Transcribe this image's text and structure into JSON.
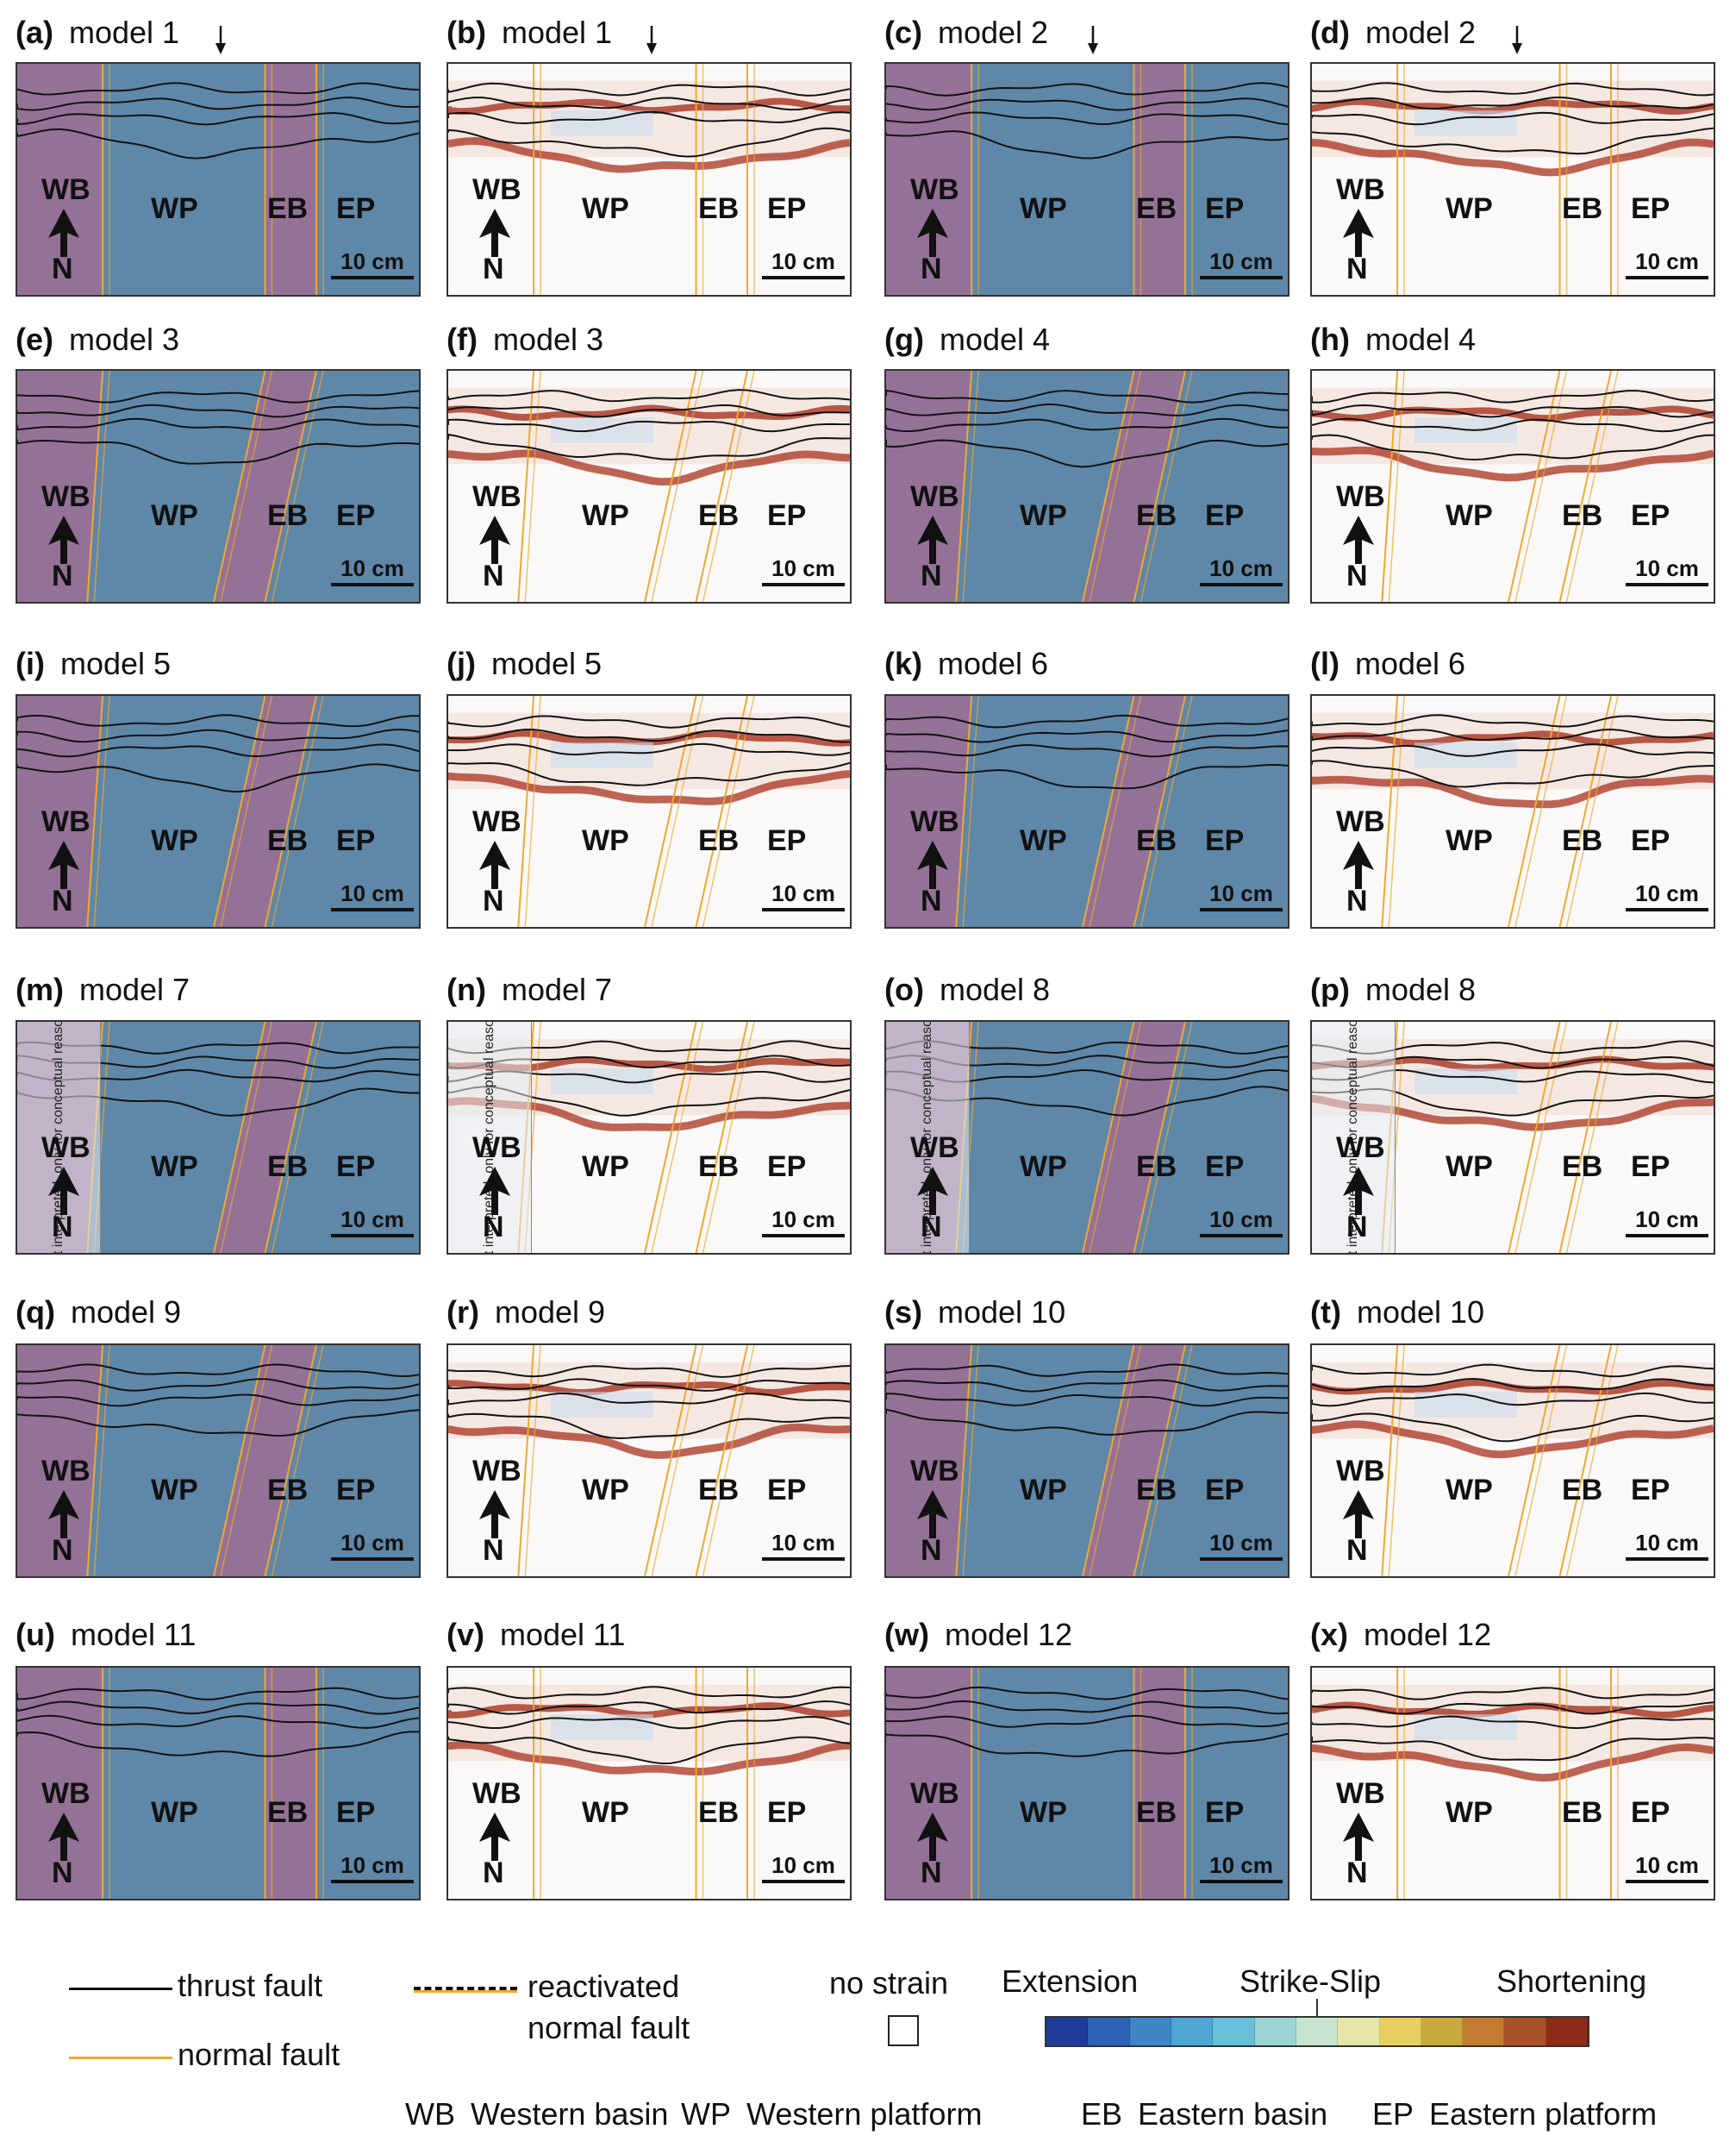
{
  "panels": [
    {
      "letter": "(a)",
      "model": "model 1",
      "arrow": true
    },
    {
      "letter": "(b)",
      "model": "model 1",
      "arrow": true
    },
    {
      "letter": "(c)",
      "model": "model 2",
      "arrow": true
    },
    {
      "letter": "(d)",
      "model": "model 2",
      "arrow": true
    },
    {
      "letter": "(e)",
      "model": "model 3"
    },
    {
      "letter": "(f)",
      "model": "model 3"
    },
    {
      "letter": "(g)",
      "model": "model 4"
    },
    {
      "letter": "(h)",
      "model": "model 4"
    },
    {
      "letter": "(i)",
      "model": "model 5"
    },
    {
      "letter": "(j)",
      "model": "model 5"
    },
    {
      "letter": "(k)",
      "model": "model 6"
    },
    {
      "letter": "(l)",
      "model": "model 6"
    },
    {
      "letter": "(m)",
      "model": "model 7",
      "note": "not interpreted, only for conceptual reasons"
    },
    {
      "letter": "(n)",
      "model": "model 7",
      "note": "not interpreted, only for conceptual reasons"
    },
    {
      "letter": "(o)",
      "model": "model 8",
      "note": "not interpreted, only for conceptual reasons"
    },
    {
      "letter": "(p)",
      "model": "model 8",
      "note": "not interpreted, only for conceptual reasons"
    },
    {
      "letter": "(q)",
      "model": "model 9"
    },
    {
      "letter": "(r)",
      "model": "model 9"
    },
    {
      "letter": "(s)",
      "model": "model 10"
    },
    {
      "letter": "(t)",
      "model": "model 10"
    },
    {
      "letter": "(u)",
      "model": "model 11"
    },
    {
      "letter": "(v)",
      "model": "model 11"
    },
    {
      "letter": "(w)",
      "model": "model 12"
    },
    {
      "letter": "(x)",
      "model": "model 12"
    }
  ],
  "labels": {
    "wb": "WB",
    "wp": "WP",
    "eb": "EB",
    "ep": "EP",
    "scale": "10 cm",
    "north": "N"
  },
  "legend": {
    "thrust": "thrust fault",
    "normal": "normal fault",
    "reactivated_1": "reactivated",
    "reactivated_2": "normal fault",
    "no_strain": "no strain",
    "extension": "Extension",
    "strike_slip": "Strike-Slip",
    "shortening": "Shortening"
  },
  "abbrev": [
    {
      "code": "WB",
      "text": "Western basin"
    },
    {
      "code": "WP",
      "text": "Western platform"
    },
    {
      "code": "EB",
      "text": "Eastern basin"
    },
    {
      "code": "EP",
      "text": "Eastern platform"
    }
  ],
  "colors": {
    "basin": "#9d6e94",
    "platform": "#5f87a8",
    "thrust": "#111111",
    "normal": "#f0a830",
    "strain_red": "#a8321e",
    "colorbar": [
      "#1f3c99",
      "#2f62b5",
      "#3f86c6",
      "#4ea6d3",
      "#67c1d9",
      "#9bd5d6",
      "#c8e4cf",
      "#e6e6a8",
      "#e9cf62",
      "#c9aa3c",
      "#c47c32",
      "#a9532a",
      "#8c2a1c"
    ]
  }
}
